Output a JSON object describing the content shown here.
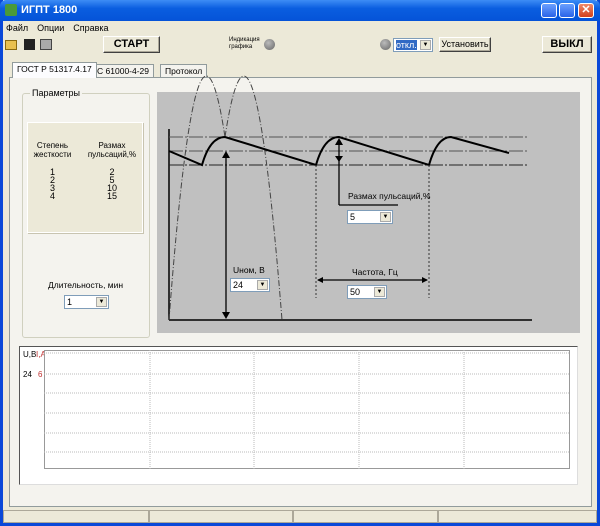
{
  "window": {
    "title": "ИГПТ 1800"
  },
  "menu": [
    "Файл",
    "Опции",
    "Справка"
  ],
  "toolbar": {
    "start": "СТАРТ",
    "indication_label_1": "Индикация",
    "indication_label_2": "графика",
    "mode_value": "откл.",
    "set": "Установить",
    "off": "ВЫКЛ"
  },
  "tabs": [
    "ГОСТ Р 51317.4.17",
    "IEC 61000-4-29",
    "Протокол"
  ],
  "params": {
    "title": "Параметры",
    "col1": [
      "Степень",
      "жесткости"
    ],
    "col2": [
      "Размах",
      "пульсаций,%"
    ],
    "levels": [
      "1",
      "2",
      "3",
      "4"
    ],
    "ripple": [
      "2",
      "5",
      "10",
      "15"
    ],
    "duration_label": "Длительность, мин",
    "duration_value": "1"
  },
  "diagram": {
    "ripple_label": "Размах пульсаций,%",
    "ripple_value": "5",
    "unom_label": "Uном, В",
    "unom_value": "24",
    "freq_label": "Частота, Гц",
    "freq_value": "50"
  },
  "graph": {
    "u_label": "U,В",
    "i_label": "I,А",
    "u_value": "24",
    "i_value": "6",
    "i_color": "#c03030"
  }
}
